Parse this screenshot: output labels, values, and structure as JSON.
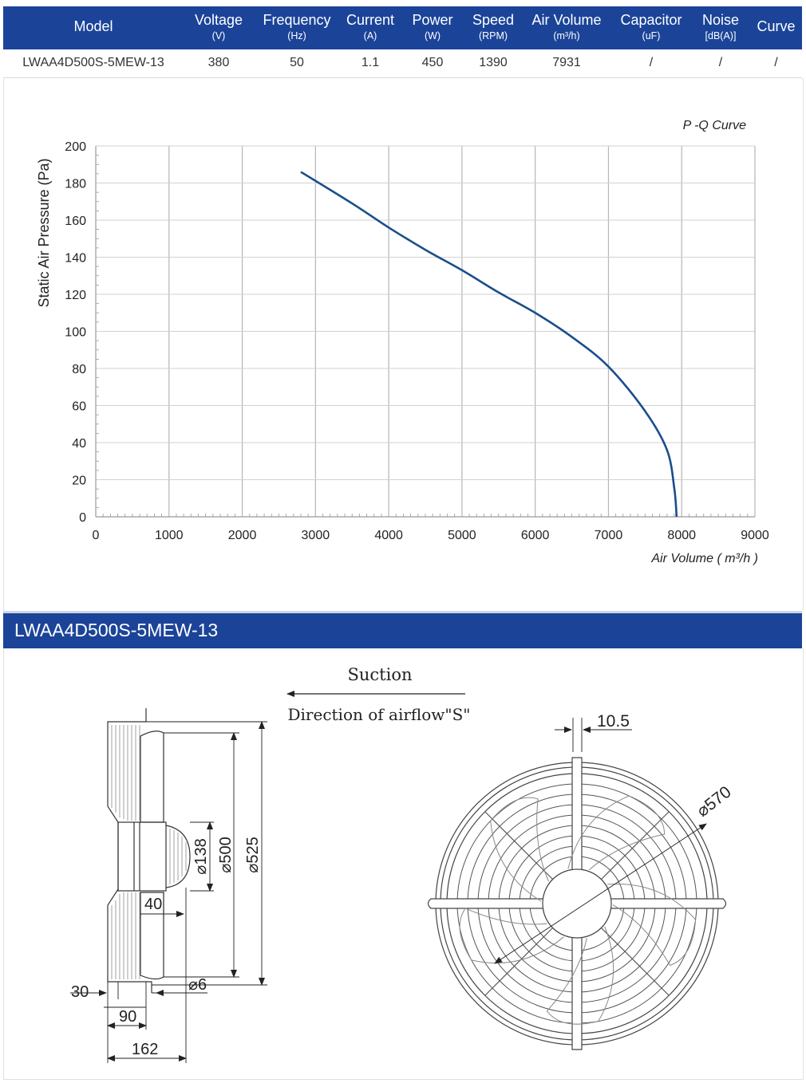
{
  "table": {
    "headers": [
      {
        "name": "Model",
        "unit": ""
      },
      {
        "name": "Voltage",
        "unit": "(V)"
      },
      {
        "name": "Frequency",
        "unit": "(Hz)"
      },
      {
        "name": "Current",
        "unit": "(A)"
      },
      {
        "name": "Power",
        "unit": "(W)"
      },
      {
        "name": "Speed",
        "unit": "(RPM)"
      },
      {
        "name": "Air Volume",
        "unit": "(m³/h)"
      },
      {
        "name": "Capacitor",
        "unit": "(uF)"
      },
      {
        "name": "Noise",
        "unit": "[dB(A)]"
      },
      {
        "name": "Curve",
        "unit": ""
      }
    ],
    "row": [
      "LWAA4D500S-5MEW-13",
      "380",
      "50",
      "1.1",
      "450",
      "1390",
      "7931",
      "/",
      "/",
      "/"
    ]
  },
  "chart_data": {
    "type": "line",
    "title": "P -Q Curve",
    "xlabel": "Air Volume ( m³/h )",
    "ylabel": "Static Air Pressure  (Pa)",
    "xlim": [
      0,
      9000
    ],
    "ylim": [
      0,
      200
    ],
    "x_ticks": [
      "0",
      "1000",
      "2000",
      "3000",
      "4000",
      "5000",
      "6000",
      "7000",
      "8000",
      "9000"
    ],
    "y_ticks": [
      "0",
      "20",
      "40",
      "60",
      "80",
      "100",
      "120",
      "140",
      "160",
      "180",
      "200"
    ],
    "grid": true,
    "line_color": "#1b4d8c",
    "series": [
      {
        "x": [
          2800,
          3500,
          4000,
          4500,
          5000,
          5500,
          6000,
          6500,
          7000,
          7500,
          7800,
          7900,
          7931
        ],
        "y": [
          186,
          169,
          156,
          144,
          133,
          121,
          110,
          97,
          81,
          57,
          36,
          15,
          0
        ]
      }
    ]
  },
  "banner": {
    "title": "LWAA4D500S-5MEW-13"
  },
  "drawing": {
    "suction": "Suction",
    "direction": "Direction of airflow\"S\"",
    "dims": {
      "d138": "⌀138",
      "d500": "⌀500",
      "d525": "⌀525",
      "d6": "⌀6",
      "d40": "40",
      "d30": "30",
      "d90": "90",
      "d162": "162",
      "d105": "10.5",
      "d570": "⌀570"
    }
  }
}
